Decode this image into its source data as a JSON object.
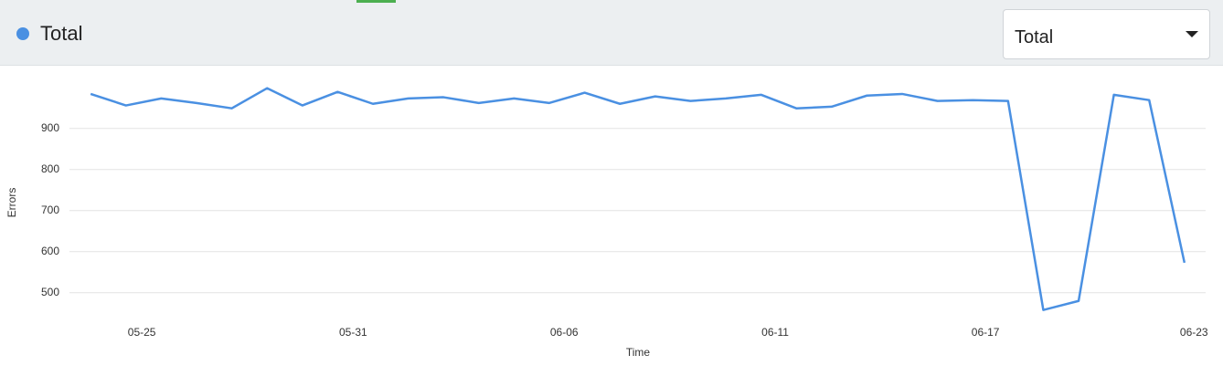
{
  "dropdown": {
    "selected": "Total"
  },
  "chart_data": {
    "type": "line",
    "x": [
      0,
      1,
      2,
      3,
      4,
      5,
      6,
      7,
      8,
      9,
      10,
      11,
      12,
      13,
      14,
      15,
      16,
      17,
      18,
      19,
      20,
      21,
      22,
      23,
      24,
      25,
      26,
      27,
      28,
      29,
      30,
      31
    ],
    "series": [
      {
        "name": "Total",
        "color": "#4a90e2",
        "values": [
          984,
          956,
          973,
          962,
          949,
          998,
          956,
          989,
          960,
          973,
          976,
          962,
          973,
          962,
          987,
          960,
          978,
          967,
          973,
          982,
          949,
          953,
          980,
          984,
          967,
          969,
          967,
          458,
          480,
          982,
          969,
          573
        ]
      }
    ],
    "xlabel": "Time",
    "ylabel": "Errors",
    "xlim": [
      -0.6,
      31.6
    ],
    "xticks": [
      {
        "value": 1.45,
        "label": "05-25"
      },
      {
        "value": 7.44,
        "label": "05-31"
      },
      {
        "value": 13.42,
        "label": "06-06"
      },
      {
        "value": 19.4,
        "label": "06-11"
      },
      {
        "value": 25.36,
        "label": "06-17"
      },
      {
        "value": 31.27,
        "label": "06-23"
      }
    ],
    "ylim": [
      435,
      1035
    ],
    "yticks": [
      500,
      600,
      700,
      800,
      900
    ],
    "grid": true
  }
}
